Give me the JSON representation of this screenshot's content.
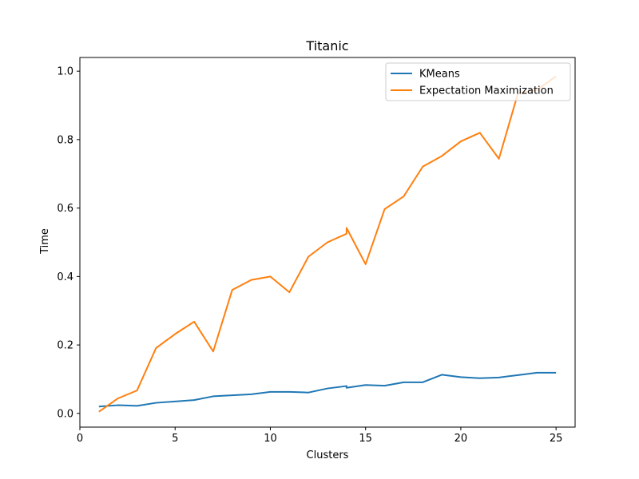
{
  "chart_data": {
    "type": "line",
    "title": "Titanic",
    "xlabel": "Clusters",
    "ylabel": "Time",
    "xlim": [
      0,
      26
    ],
    "ylim": [
      -0.04,
      1.04
    ],
    "xticks": [
      0,
      5,
      10,
      15,
      20,
      25
    ],
    "xtick_labels": [
      "0",
      "5",
      "10",
      "15",
      "20",
      "25"
    ],
    "yticks": [
      0.0,
      0.2,
      0.4,
      0.6,
      0.8,
      1.0
    ],
    "ytick_labels": [
      "0.0",
      "0.2",
      "0.4",
      "0.6",
      "0.8",
      "1.0"
    ],
    "grid": false,
    "legend_position": "top-right",
    "series": [
      {
        "name": "KMeans",
        "color": "#1f77b4",
        "x": [
          1,
          2,
          3,
          4,
          5,
          6,
          7,
          8,
          9,
          10,
          11,
          12,
          13,
          14,
          14,
          15,
          16,
          17,
          18,
          19,
          20,
          21,
          22,
          23,
          24,
          25
        ],
        "y": [
          0.02,
          0.024,
          0.022,
          0.031,
          0.035,
          0.039,
          0.05,
          0.053,
          0.056,
          0.063,
          0.063,
          0.061,
          0.073,
          0.08,
          0.075,
          0.083,
          0.081,
          0.091,
          0.091,
          0.113,
          0.106,
          0.103,
          0.105,
          0.112,
          0.119,
          0.119
        ]
      },
      {
        "name": "Expectation Maximization",
        "color": "#ff7f0e",
        "x": [
          1,
          2,
          3,
          4,
          5,
          6,
          7,
          8,
          9,
          10,
          11,
          12,
          13,
          14,
          14,
          15,
          16,
          17,
          18,
          19,
          20,
          21,
          22,
          23,
          24,
          25
        ],
        "y": [
          0.005,
          0.044,
          0.067,
          0.191,
          0.232,
          0.268,
          0.181,
          0.361,
          0.39,
          0.4,
          0.354,
          0.458,
          0.5,
          0.525,
          0.542,
          0.436,
          0.597,
          0.634,
          0.721,
          0.752,
          0.795,
          0.82,
          0.744,
          0.935,
          0.945,
          0.985
        ]
      }
    ]
  }
}
